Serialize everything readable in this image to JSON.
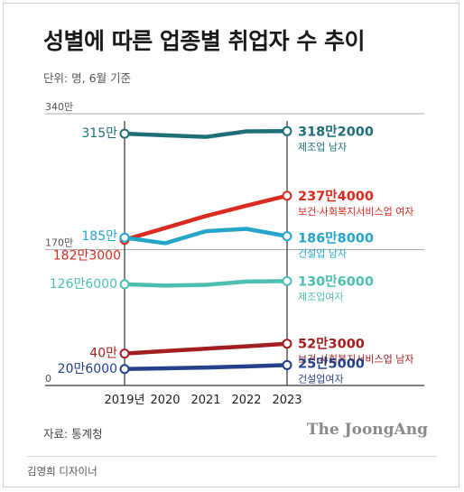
{
  "title": "성별에 따른 업종별 취업자 수 추이",
  "unit_note": "단위: 명, 6월 기준",
  "source": "자료: 통계청",
  "brand": "The JoongAng",
  "designer": "김영희 디자이너",
  "chart_data": {
    "type": "line",
    "x": [
      "2019년",
      "2020",
      "2021",
      "2022",
      "2023"
    ],
    "y_ticks": [
      {
        "value": 340,
        "label": "340만"
      },
      {
        "value": 170,
        "label": "170만"
      },
      {
        "value": 0,
        "label": "0"
      }
    ],
    "ylim": [
      0,
      340
    ],
    "series": [
      {
        "name": "제조업 남자",
        "color": "#1f6f78",
        "values": [
          315,
          313,
          311,
          318,
          318.2
        ],
        "start_label": "315만",
        "end_value": "318만2000",
        "end_name": "제조업 남자"
      },
      {
        "name": "보건·사회복지서비스업 여자",
        "color": "#d92b1f",
        "values": [
          182.3,
          197,
          212,
          225,
          237.4
        ],
        "start_label": "182만3000",
        "end_value": "237만4000",
        "end_name": "보건·사회복지서비스업 여자"
      },
      {
        "name": "건설업 남자",
        "color": "#25a6c8",
        "values": [
          185,
          178,
          193,
          196,
          186.8
        ],
        "start_label": "185만",
        "end_value": "186만8000",
        "end_name": "건설업 남자"
      },
      {
        "name": "제조업여자",
        "color": "#4dbfb0",
        "values": [
          126.6,
          125,
          126,
          130,
          130.6
        ],
        "start_label": "126만6000",
        "end_value": "130만6000",
        "end_name": "제조업여자"
      },
      {
        "name": "보건·사회복지서비스업 남자",
        "color": "#a31e1e",
        "values": [
          40,
          43,
          46,
          49,
          52.3
        ],
        "start_label": "40만",
        "end_value": "52만3000",
        "end_name": "보건·사회복지서비스업 남자"
      },
      {
        "name": "건설업여자",
        "color": "#24418a",
        "values": [
          20.6,
          21.5,
          22.5,
          23.8,
          25.5
        ],
        "start_label": "20만6000",
        "end_value": "25만5000",
        "end_name": "건설업여자"
      }
    ]
  }
}
